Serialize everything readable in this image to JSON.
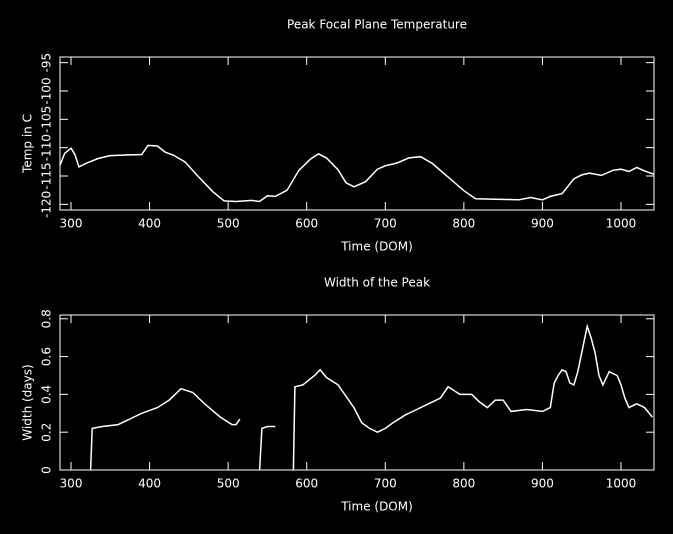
{
  "chart_data": [
    {
      "type": "line",
      "title": "Peak Focal Plane Temperature",
      "x_label": "Time (DOM)",
      "y_label": "Temp in C",
      "color": "#ffffff",
      "x": [
        286,
        292,
        300,
        305,
        310,
        320,
        335,
        350,
        370,
        390,
        398,
        410,
        420,
        430,
        445,
        460,
        480,
        495,
        510,
        530,
        540,
        550,
        560,
        575,
        590,
        605,
        615,
        625,
        640,
        650,
        660,
        675,
        690,
        700,
        715,
        730,
        745,
        760,
        780,
        800,
        815,
        840,
        870,
        885,
        900,
        910,
        925,
        940,
        950,
        960,
        975,
        990,
        1000,
        1010,
        1020,
        1030,
        1042
      ],
      "values": [
        -113.1,
        -111.0,
        -110.1,
        -111.2,
        -113.4,
        -112.7,
        -111.9,
        -111.4,
        -111.3,
        -111.2,
        -109.6,
        -109.7,
        -110.8,
        -111.3,
        -112.5,
        -114.8,
        -117.7,
        -119.4,
        -119.5,
        -119.3,
        -119.5,
        -118.5,
        -118.6,
        -117.5,
        -114.0,
        -112.0,
        -111.1,
        -111.8,
        -113.9,
        -116.2,
        -116.9,
        -116.0,
        -113.8,
        -113.2,
        -112.7,
        -111.8,
        -111.6,
        -112.8,
        -115.2,
        -117.6,
        -119.0,
        -119.1,
        -119.2,
        -118.8,
        -119.2,
        -118.6,
        -118.1,
        -115.5,
        -114.8,
        -114.5,
        -114.9,
        -114.0,
        -113.8,
        -114.2,
        -113.5,
        -114.1,
        -114.7
      ],
      "xlim": [
        286,
        1042
      ],
      "ylim": [
        -121,
        -94
      ],
      "xticks": [
        300,
        400,
        500,
        600,
        700,
        800,
        900,
        1000
      ],
      "yticks": [
        -120,
        -115,
        -110,
        -105,
        -100,
        -95
      ]
    },
    {
      "type": "line",
      "title": "Width of the Peak",
      "x_label": "Time (DOM)",
      "y_label": "Width (days)",
      "color": "#ffffff",
      "x": [
        325,
        327,
        340,
        360,
        375,
        390,
        410,
        425,
        440,
        455,
        470,
        490,
        505,
        510,
        515,
        530,
        540,
        543,
        550,
        560,
        570,
        583,
        585,
        595,
        610,
        617,
        625,
        640,
        660,
        670,
        680,
        690,
        700,
        710,
        725,
        740,
        755,
        770,
        780,
        795,
        810,
        820,
        830,
        840,
        850,
        860,
        880,
        900,
        910,
        915,
        920,
        925,
        930,
        935,
        940,
        945,
        950,
        957,
        962,
        967,
        972,
        977,
        985,
        995,
        1000,
        1005,
        1010,
        1020,
        1030,
        1040
      ],
      "values": [
        0,
        0.22,
        0.23,
        0.24,
        0.27,
        0.3,
        0.33,
        0.37,
        0.43,
        0.41,
        0.35,
        0.28,
        0.24,
        0.24,
        0.27,
        null,
        0,
        0.22,
        0.23,
        0.23,
        null,
        0,
        0.44,
        0.45,
        0.5,
        0.53,
        0.49,
        0.45,
        0.33,
        0.25,
        0.22,
        0.2,
        0.22,
        0.25,
        0.29,
        0.32,
        0.35,
        0.38,
        0.44,
        0.4,
        0.4,
        0.36,
        0.33,
        0.37,
        0.37,
        0.31,
        0.32,
        0.31,
        0.33,
        0.46,
        0.5,
        0.53,
        0.52,
        0.46,
        0.45,
        0.52,
        0.62,
        0.76,
        0.7,
        0.62,
        0.5,
        0.45,
        0.52,
        0.5,
        0.45,
        0.38,
        0.33,
        0.35,
        0.33,
        0.28
      ],
      "xlim": [
        286,
        1042
      ],
      "ylim": [
        0,
        0.82
      ],
      "xticks": [
        300,
        400,
        500,
        600,
        700,
        800,
        900,
        1000
      ],
      "yticks": [
        0,
        0.2,
        0.4,
        0.6,
        0.8
      ]
    }
  ]
}
